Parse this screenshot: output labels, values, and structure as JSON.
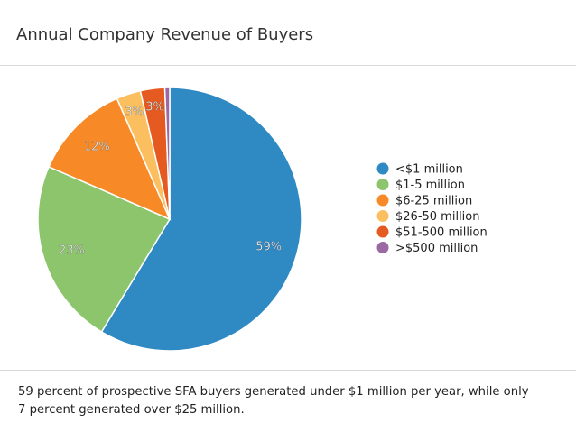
{
  "title": "Annual Company Revenue of Buyers",
  "caption": {
    "line1": "59 percent of prospective SFA buyers generated under $1 million per year, while only",
    "line2": "7 percent generated over $25 million."
  },
  "chart_data": {
    "type": "pie",
    "title": "Annual Company Revenue of Buyers",
    "legend_position": "right",
    "slices": [
      {
        "name": "<$1 million",
        "value": 59,
        "label": "59%",
        "color": "#2f8ac4"
      },
      {
        "name": "$1-5 million",
        "value": 23,
        "label": "23%",
        "color": "#8cc56c"
      },
      {
        "name": "$6-25 million",
        "value": 12,
        "label": "12%",
        "color": "#f78a27"
      },
      {
        "name": "$26-50 million",
        "value": 3,
        "label": "3%",
        "color": "#fbbf60"
      },
      {
        "name": "$51-500 million",
        "value": 3,
        "label": "3%",
        "color": "#e55a21"
      },
      {
        "name": ">$500 million",
        "value": 0.6,
        "label": "",
        "color": "#9b6aa3"
      }
    ]
  }
}
